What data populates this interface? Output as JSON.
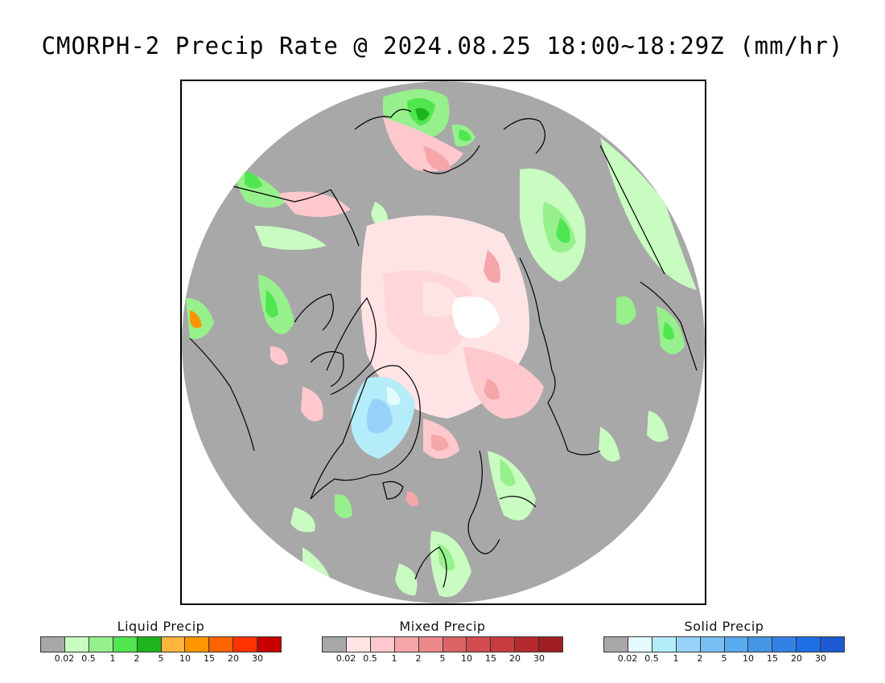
{
  "title": "CMORPH-2 Precip Rate @ 2024.08.25 18:00~18:29Z (mm/hr)",
  "map": {
    "background": "#a8a8a8",
    "no_precip_color": "#a8a8a8",
    "coastline_color": "#000000"
  },
  "legends": [
    {
      "title": "Liquid Precip",
      "colors": [
        "#a8a8a8",
        "#c8fcc0",
        "#96f08c",
        "#50e650",
        "#1eb41e",
        "#ffb43c",
        "#ff9600",
        "#ff6400",
        "#ff3200",
        "#c80000"
      ],
      "ticks": [
        "0.02",
        "0.5",
        "1",
        "2",
        "5",
        "10",
        "15",
        "20",
        "30"
      ]
    },
    {
      "title": "Mixed Precip",
      "colors": [
        "#a8a8a8",
        "#ffe4e6",
        "#ffc8cc",
        "#f4a6a8",
        "#ea8a8c",
        "#dc6466",
        "#d24c50",
        "#c83c40",
        "#b42a2e",
        "#a01e22"
      ],
      "ticks": [
        "0.02",
        "0.5",
        "1",
        "2",
        "5",
        "10",
        "15",
        "20",
        "30"
      ]
    },
    {
      "title": "Solid Precip",
      "colors": [
        "#a8a8a8",
        "#e4fcff",
        "#b4ecfa",
        "#96d2fa",
        "#78bef0",
        "#5aaaf0",
        "#4696e6",
        "#3282e6",
        "#1e6ee6",
        "#1e5ad2"
      ],
      "ticks": [
        "0.02",
        "0.5",
        "1",
        "2",
        "5",
        "10",
        "15",
        "20",
        "30"
      ]
    }
  ]
}
